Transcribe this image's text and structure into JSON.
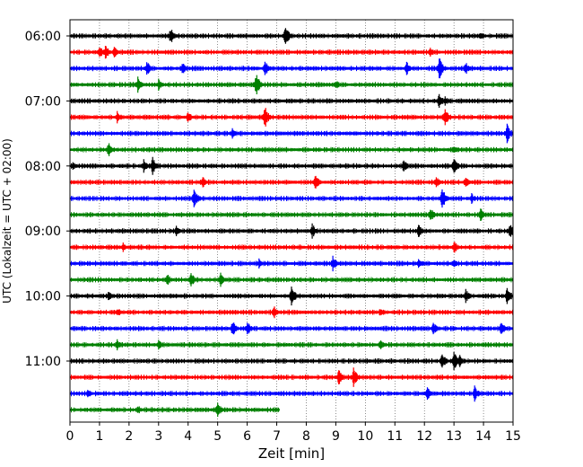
{
  "chart_data": {
    "type": "line",
    "title": "",
    "xlabel": "Zeit  [min]",
    "ylabel": "UTC (Lokalzeit = UTC + 02:00)",
    "xlim": [
      0,
      15
    ],
    "x_ticks": [
      "0",
      "1",
      "2",
      "3",
      "4",
      "5",
      "6",
      "7",
      "8",
      "9",
      "10",
      "11",
      "12",
      "13",
      "14",
      "15"
    ],
    "y_ticks": [
      "06:00",
      "07:00",
      "08:00",
      "09:00",
      "10:00",
      "11:00"
    ],
    "grid": "vertical dotted at each minute",
    "trace_interval_min": 15,
    "first_trace_utc": "06:00",
    "last_trace_end_min": 7.1,
    "color_cycle": [
      "#000000",
      "#ff0000",
      "#0000ff",
      "#008000"
    ],
    "traces": [
      {
        "start": "06:00",
        "color": "#000000",
        "spikes": [
          [
            3.4,
            10
          ],
          [
            7.3,
            14
          ],
          [
            13.9,
            6
          ]
        ]
      },
      {
        "start": "06:15",
        "color": "#ff0000",
        "spikes": [
          [
            1.0,
            8
          ],
          [
            1.2,
            9
          ],
          [
            1.5,
            7
          ],
          [
            12.2,
            6
          ]
        ]
      },
      {
        "start": "06:30",
        "color": "#0000ff",
        "spikes": [
          [
            2.6,
            9
          ],
          [
            3.8,
            8
          ],
          [
            6.6,
            9
          ],
          [
            11.4,
            8
          ],
          [
            12.5,
            14
          ],
          [
            13.4,
            8
          ]
        ]
      },
      {
        "start": "06:45",
        "color": "#008000",
        "spikes": [
          [
            2.3,
            9
          ],
          [
            3.0,
            7
          ],
          [
            6.3,
            14
          ],
          [
            9.0,
            6
          ]
        ]
      },
      {
        "start": "07:00",
        "color": "#000000",
        "spikes": [
          [
            12.5,
            10
          ],
          [
            12.7,
            6
          ]
        ]
      },
      {
        "start": "07:15",
        "color": "#ff0000",
        "spikes": [
          [
            1.6,
            7
          ],
          [
            4.0,
            7
          ],
          [
            6.6,
            13
          ],
          [
            12.7,
            10
          ]
        ]
      },
      {
        "start": "07:30",
        "color": "#0000ff",
        "spikes": [
          [
            5.5,
            6
          ],
          [
            14.8,
            12
          ]
        ]
      },
      {
        "start": "07:45",
        "color": "#008000",
        "spikes": [
          [
            1.3,
            9
          ],
          [
            13.0,
            6
          ]
        ]
      },
      {
        "start": "08:00",
        "color": "#000000",
        "spikes": [
          [
            0.1,
            5
          ],
          [
            2.5,
            8
          ],
          [
            2.8,
            11
          ],
          [
            11.3,
            8
          ],
          [
            13.0,
            10
          ]
        ]
      },
      {
        "start": "08:15",
        "color": "#ff0000",
        "spikes": [
          [
            4.5,
            7
          ],
          [
            8.3,
            10
          ],
          [
            12.4,
            8
          ],
          [
            13.4,
            8
          ]
        ]
      },
      {
        "start": "08:30",
        "color": "#0000ff",
        "spikes": [
          [
            4.2,
            13
          ],
          [
            12.6,
            13
          ],
          [
            13.6,
            6
          ]
        ]
      },
      {
        "start": "08:45",
        "color": "#008000",
        "spikes": [
          [
            12.2,
            9
          ],
          [
            13.9,
            9
          ]
        ]
      },
      {
        "start": "09:00",
        "color": "#000000",
        "spikes": [
          [
            3.6,
            6
          ],
          [
            8.2,
            9
          ],
          [
            11.8,
            8
          ],
          [
            14.9,
            10
          ]
        ]
      },
      {
        "start": "09:15",
        "color": "#ff0000",
        "spikes": [
          [
            1.8,
            6
          ],
          [
            13.0,
            8
          ]
        ]
      },
      {
        "start": "09:30",
        "color": "#0000ff",
        "spikes": [
          [
            6.4,
            6
          ],
          [
            8.9,
            9
          ],
          [
            11.8,
            8
          ],
          [
            13.0,
            7
          ]
        ]
      },
      {
        "start": "09:45",
        "color": "#008000",
        "spikes": [
          [
            3.3,
            7
          ],
          [
            4.1,
            9
          ],
          [
            5.1,
            8
          ]
        ]
      },
      {
        "start": "10:00",
        "color": "#000000",
        "spikes": [
          [
            1.3,
            6
          ],
          [
            7.5,
            14
          ],
          [
            13.4,
            8
          ],
          [
            14.8,
            12
          ]
        ]
      },
      {
        "start": "10:15",
        "color": "#ff0000",
        "spikes": [
          [
            1.6,
            6
          ],
          [
            6.9,
            8
          ],
          [
            10.5,
            6
          ]
        ]
      },
      {
        "start": "10:30",
        "color": "#0000ff",
        "spikes": [
          [
            5.5,
            10
          ],
          [
            6.0,
            9
          ],
          [
            12.3,
            8
          ],
          [
            14.6,
            9
          ]
        ]
      },
      {
        "start": "10:45",
        "color": "#008000",
        "spikes": [
          [
            1.6,
            7
          ],
          [
            3.0,
            6
          ],
          [
            10.5,
            6
          ]
        ]
      },
      {
        "start": "11:00",
        "color": "#000000",
        "spikes": [
          [
            12.6,
            10
          ],
          [
            13.0,
            12
          ],
          [
            13.2,
            8
          ]
        ]
      },
      {
        "start": "11:15",
        "color": "#ff0000",
        "spikes": [
          [
            9.1,
            10
          ],
          [
            9.6,
            11
          ]
        ]
      },
      {
        "start": "11:30",
        "color": "#0000ff",
        "spikes": [
          [
            0.6,
            6
          ],
          [
            12.1,
            8
          ],
          [
            13.7,
            9
          ]
        ]
      },
      {
        "start": "11:45",
        "color": "#008000",
        "spikes": [
          [
            2.3,
            6
          ],
          [
            5.0,
            9
          ]
        ]
      }
    ]
  }
}
